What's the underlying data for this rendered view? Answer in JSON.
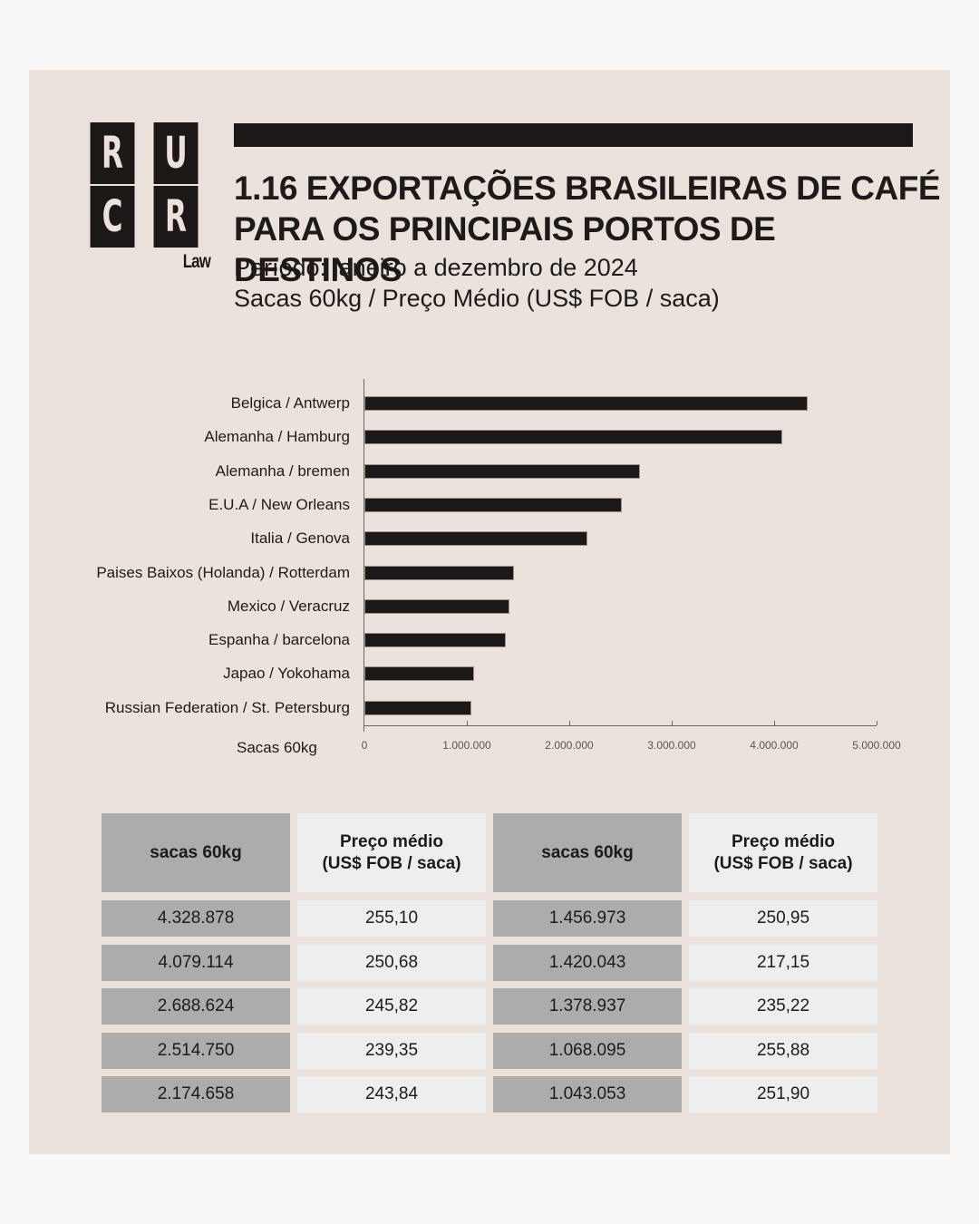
{
  "logo": {
    "letters": [
      "R",
      "U",
      "C",
      "R"
    ],
    "sub": "Law"
  },
  "header": {
    "title_line1": "1.16 EXPORTAÇÕES BRASILEIRAS DE CAFÉ",
    "title_line2": "PARA OS PRINCIPAIS PORTOS DE DESTINOS",
    "subtitle_line1": "Período: janeiro a dezembro de 2024",
    "subtitle_line2": "Sacas 60kg / Preço Médio (US$ FOB / saca)"
  },
  "colors": {
    "background": "#ebe3db",
    "page": "#f8f8f8",
    "bar": "#1c1818",
    "table_dark": "#acacac",
    "table_light": "#eeeeee"
  },
  "chart_data": {
    "type": "bar",
    "orientation": "horizontal",
    "title": "1.16 EXPORTAÇÕES BRASILEIRAS DE CAFÉ PARA OS PRINCIPAIS PORTOS DE DESTINOS",
    "subtitle": "Período: janeiro a dezembro de 2024 — Sacas 60kg / Preço Médio (US$ FOB / saca)",
    "xlabel": "Sacas 60kg",
    "ylabel": "",
    "categories": [
      "Belgica / Antwerp",
      "Alemanha / Hamburg",
      "Alemanha / bremen",
      "E.U.A / New Orleans",
      "Italia / Genova",
      "Paises Baixos (Holanda) / Rotterdam",
      "Mexico / Veracruz",
      "Espanha / barcelona",
      "Japao / Yokohama",
      "Russian Federation / St. Petersburg"
    ],
    "series": [
      {
        "name": "Sacas 60kg",
        "values": [
          4328878,
          4079114,
          2688624,
          2514750,
          2174658,
          1456973,
          1420043,
          1378937,
          1068095,
          1043053
        ]
      },
      {
        "name": "Preço médio (US$ FOB / saca)",
        "values": [
          255.1,
          250.68,
          245.82,
          239.35,
          243.84,
          250.95,
          217.15,
          235.22,
          255.88,
          251.9
        ]
      }
    ],
    "xlim": [
      0,
      5000000
    ],
    "x_ticks": [
      0,
      1000000,
      2000000,
      3000000,
      4000000,
      5000000
    ],
    "x_tick_labels": [
      "0",
      "1.000.000",
      "2.000.000",
      "3.000.000",
      "4.000.000",
      "5.000.000"
    ],
    "grid": false,
    "legend": "none"
  },
  "table": {
    "headers": [
      "sacas 60kg",
      "Preço médio\n(US$ FOB / saca)",
      "sacas 60kg",
      "Preço médio\n(US$ FOB / saca)"
    ],
    "header_lines": [
      [
        "sacas 60kg"
      ],
      [
        "Preço médio",
        "(US$ FOB / saca)"
      ],
      [
        "sacas 60kg"
      ],
      [
        "Preço médio",
        "(US$ FOB / saca)"
      ]
    ],
    "rows": [
      [
        "4.328.878",
        "255,10",
        "1.456.973",
        "250,95"
      ],
      [
        "4.079.114",
        "250,68",
        "1.420.043",
        "217,15"
      ],
      [
        "2.688.624",
        "245,82",
        "1.378.937",
        "235,22"
      ],
      [
        "2.514.750",
        "239,35",
        "1.068.095",
        "255,88"
      ],
      [
        "2.174.658",
        "243,84",
        "1.043.053",
        "251,90"
      ]
    ]
  }
}
